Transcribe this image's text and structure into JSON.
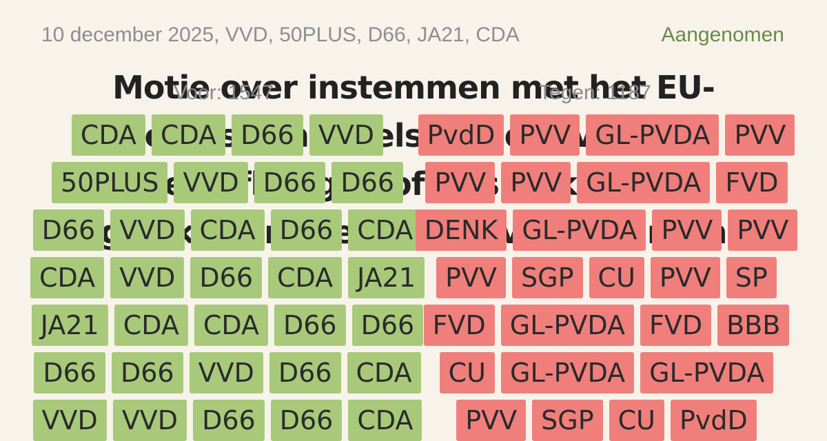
{
  "header": {
    "meta": "10 december 2025, VVD, 50PLUS, D66, JA21, CDA",
    "status": "Aangenomen",
    "title": "Motie over instemmen met het EU-Mercosur-handelsakkoord van zich laten afhangen of er sprake is van gelijkwaardige handelsvoorwaarden"
  },
  "counts": {
    "voor": "Voor: 1547",
    "tegen": "Tegen: 1187"
  },
  "colors": {
    "voor": "#a8c97a",
    "tegen": "#f07f7c",
    "status": "#6a8a4a"
  },
  "voor_rows": [
    [
      "CDA",
      "CDA",
      "D66",
      "VVD"
    ],
    [
      "50PLUS",
      "VVD",
      "D66",
      "D66"
    ],
    [
      "D66",
      "VVD",
      "CDA",
      "D66",
      "CDA"
    ],
    [
      "CDA",
      "VVD",
      "D66",
      "CDA",
      "JA21"
    ],
    [
      "JA21",
      "CDA",
      "CDA",
      "D66",
      "D66"
    ],
    [
      "D66",
      "D66",
      "VVD",
      "D66",
      "CDA"
    ],
    [
      "VVD",
      "VVD",
      "D66",
      "D66",
      "CDA"
    ]
  ],
  "tegen_rows": [
    [
      "PvdD",
      "PVV",
      "GL-PVDA",
      "PVV"
    ],
    [
      "PVV",
      "PVV",
      "GL-PVDA",
      "FVD"
    ],
    [
      "DENK",
      "GL-PVDA",
      "PVV",
      "PVV"
    ],
    [
      "PVV",
      "SGP",
      "CU",
      "PVV",
      "SP"
    ],
    [
      "FVD",
      "GL-PVDA",
      "FVD",
      "BBB"
    ],
    [
      "CU",
      "GL-PVDA",
      "GL-PVDA"
    ],
    [
      "PVV",
      "SGP",
      "CU",
      "PvdD"
    ]
  ]
}
